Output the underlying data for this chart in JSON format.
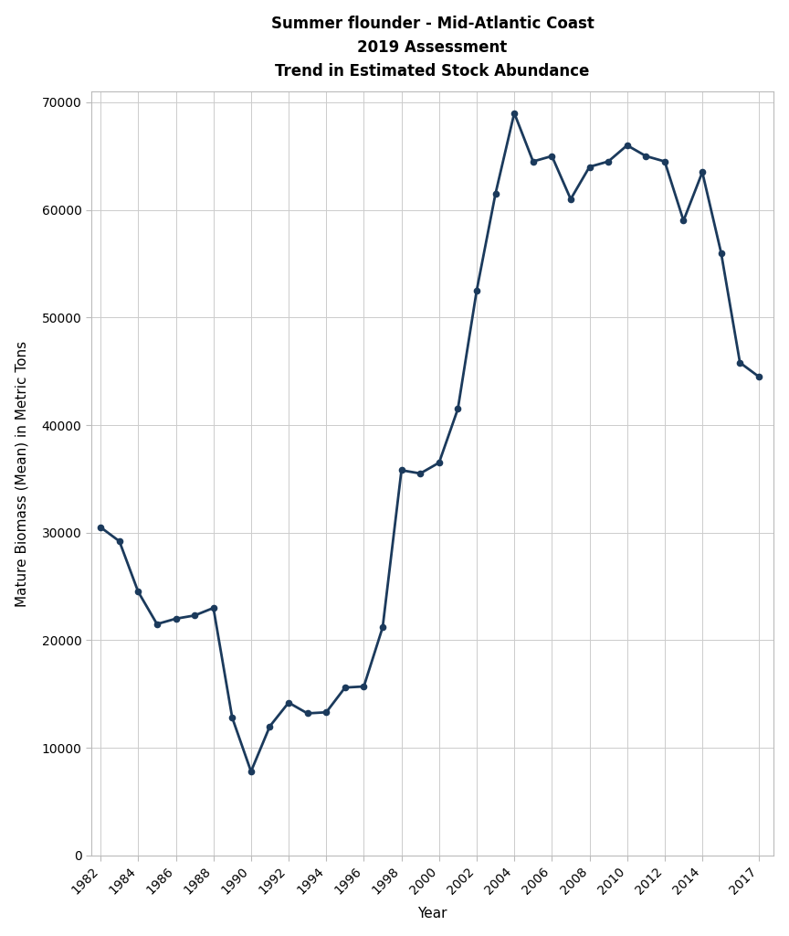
{
  "title_line1": "Summer flounder - Mid-Atlantic Coast",
  "title_line2": "2019 Assessment",
  "title_line3": "Trend in Estimated Stock Abundance",
  "xlabel": "Year",
  "ylabel": "Mature Biomass (Mean) in Metric Tons",
  "line_color": "#1b3a5c",
  "background_color": "#ffffff",
  "grid_color": "#cccccc",
  "years": [
    1982,
    1983,
    1984,
    1985,
    1986,
    1987,
    1988,
    1989,
    1990,
    1991,
    1992,
    1993,
    1994,
    1995,
    1996,
    1997,
    1998,
    1999,
    2000,
    2001,
    2002,
    2003,
    2004,
    2005,
    2006,
    2007,
    2008,
    2009,
    2010,
    2011,
    2012,
    2013,
    2014,
    2015,
    2016,
    2017
  ],
  "values": [
    30500,
    29200,
    24500,
    21500,
    22000,
    22300,
    23000,
    12800,
    7800,
    12000,
    14200,
    13200,
    13300,
    15600,
    15700,
    21200,
    35800,
    35500,
    36500,
    41500,
    52500,
    61500,
    69000,
    64500,
    65000,
    61000,
    64000,
    64500,
    66000,
    65000,
    64500,
    59000,
    63500,
    56000,
    45800,
    44500
  ],
  "ylim": [
    0,
    71000
  ],
  "xlim_min": 1981.5,
  "xlim_max": 2017.8,
  "yticks": [
    0,
    10000,
    20000,
    30000,
    40000,
    50000,
    60000,
    70000
  ],
  "xticks": [
    1982,
    1984,
    1986,
    1988,
    1990,
    1992,
    1994,
    1996,
    1998,
    2000,
    2002,
    2004,
    2006,
    2008,
    2010,
    2012,
    2014,
    2017
  ],
  "linewidth": 2.0,
  "markersize": 4.5,
  "title_fontsize": 12,
  "axis_fontsize": 11,
  "tick_fontsize": 10
}
